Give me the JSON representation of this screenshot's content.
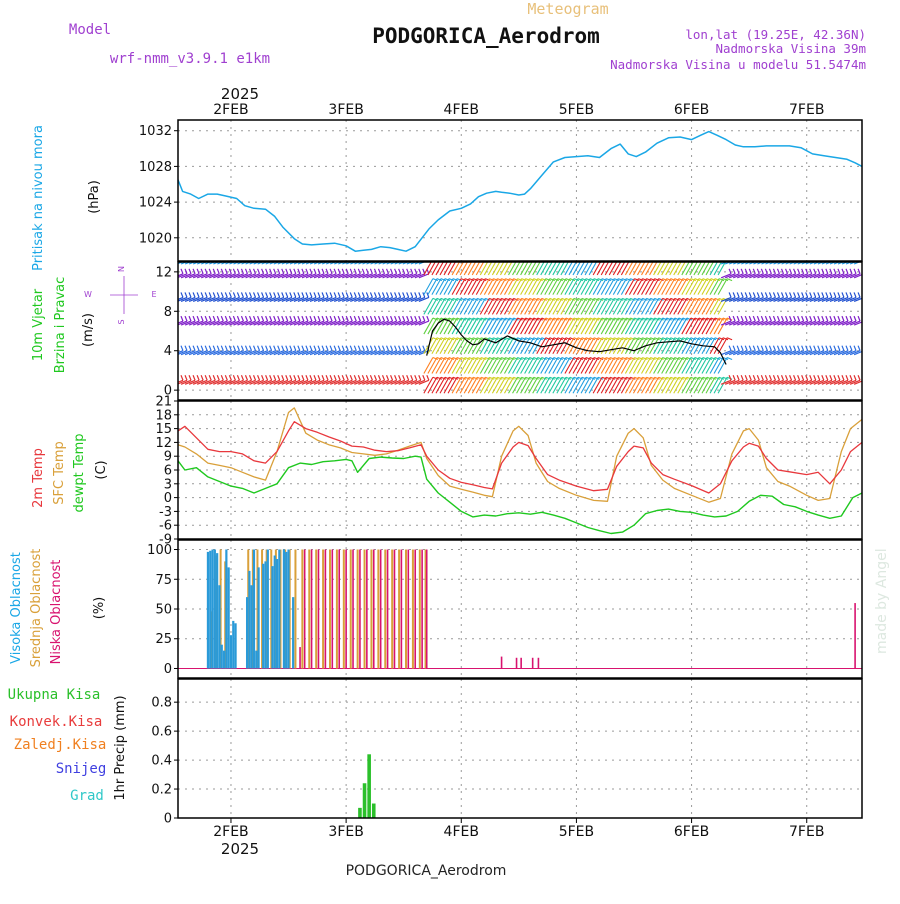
{
  "header": {
    "meteogram_label": "Meteogram",
    "station_title": "PODGORICA_Aerodrom",
    "model_label": "Model",
    "model_value": "wrf-nmm_v3.9.1 e1km",
    "lonlat": "lon,lat (19.25E, 42.36N)",
    "elevation": "Nadmorska Visina 39m",
    "model_elevation": "Nadmorska Visina u modelu 51.5474m",
    "watermark": "made by Angel",
    "footer_station": "PODGORICA_Aerodrom"
  },
  "colors": {
    "pressure": "#1aa7e6",
    "temp2m": "#e8383d",
    "sfc_temp": "#d9a03a",
    "dewpoint": "#1fc81f",
    "cloud_high": "#2a9ad8",
    "cloud_mid": "#d9a03a",
    "cloud_low": "#d8136f",
    "precip_total": "#2bc02b",
    "precip_conv": "#e83c3c",
    "precip_frozen": "#f08020",
    "precip_snow": "#4040e0",
    "precip_hail": "#30c8c8",
    "panel_label_purple": "#a040d0"
  },
  "chart_data": [
    {
      "type": "line",
      "panel": "pressure",
      "ylabel_left": "Pritisak na nivou mora",
      "ylabel_unit": "(hPa)",
      "time_axis": {
        "top_year": "2025",
        "bottom_year": "2025",
        "ticks": [
          "2FEB",
          "3FEB",
          "4FEB",
          "5FEB",
          "6FEB",
          "7FEB"
        ],
        "range_days": [
          1.54,
          7.48
        ]
      },
      "yticks": [
        "1020",
        "1024",
        "1028",
        "1032"
      ],
      "ylim": [
        1017.4,
        1033.2
      ],
      "series": [
        {
          "x": [
            1.54,
            1.58,
            1.65,
            1.72,
            1.8,
            1.88,
            1.95,
            2.05,
            2.12,
            2.2,
            2.3,
            2.38,
            2.45,
            2.55,
            2.62,
            2.7,
            2.8,
            2.9,
            3.0,
            3.08,
            3.15,
            3.22,
            3.3,
            3.38,
            3.45,
            3.52,
            3.6,
            3.66,
            3.72,
            3.8,
            3.9,
            4.0,
            4.08,
            4.15,
            4.22,
            4.3,
            4.35,
            4.42,
            4.5,
            4.55,
            4.6,
            4.7,
            4.8,
            4.9,
            5.0,
            5.1,
            5.2,
            5.3,
            5.38,
            5.45,
            5.52,
            5.6,
            5.7,
            5.8,
            5.9,
            6.0,
            6.08,
            6.15,
            6.22,
            6.3,
            6.38,
            6.45,
            6.55,
            6.65,
            6.75,
            6.85,
            6.95,
            7.05,
            7.15,
            7.25,
            7.35,
            7.42,
            7.48
          ],
          "values": [
            1026.5,
            1025.2,
            1024.9,
            1024.4,
            1024.9,
            1024.9,
            1024.7,
            1024.4,
            1023.6,
            1023.3,
            1023.2,
            1022.4,
            1021.2,
            1019.9,
            1019.3,
            1019.2,
            1019.3,
            1019.4,
            1019.1,
            1018.5,
            1018.6,
            1018.7,
            1019.0,
            1018.9,
            1018.7,
            1018.5,
            1019.0,
            1020.0,
            1021.0,
            1022.0,
            1023.0,
            1023.3,
            1023.8,
            1024.6,
            1025.0,
            1025.2,
            1025.1,
            1025.0,
            1024.8,
            1024.9,
            1025.5,
            1027.0,
            1028.5,
            1029.0,
            1029.1,
            1029.2,
            1029.0,
            1030.0,
            1030.5,
            1029.4,
            1029.1,
            1029.6,
            1030.6,
            1031.2,
            1031.3,
            1031.0,
            1031.5,
            1031.9,
            1031.5,
            1031.0,
            1030.4,
            1030.2,
            1030.2,
            1030.3,
            1030.3,
            1030.3,
            1030.1,
            1029.4,
            1029.2,
            1029.0,
            1028.8,
            1028.4,
            1028.0
          ]
        }
      ]
    },
    {
      "type": "line",
      "panel": "wind",
      "ylabel_left_1": "10m Vjetar",
      "ylabel_left_2": "Brzina i Pravac",
      "ylabel_unit": "(m/s)",
      "compass": {
        "north": "N",
        "south": "S",
        "east": "E",
        "west": "W"
      },
      "yticks": [
        "0",
        "4",
        "8",
        "12"
      ],
      "ylim": [
        -1,
        13
      ],
      "series": [
        {
          "name": "speed",
          "x": [
            3.7,
            3.75,
            3.8,
            3.85,
            3.9,
            3.95,
            4.0,
            4.05,
            4.1,
            4.15,
            4.2,
            4.3,
            4.4,
            4.5,
            4.6,
            4.7,
            4.8,
            4.9,
            5.0,
            5.1,
            5.2,
            5.3,
            5.4,
            5.5,
            5.6,
            5.7,
            5.8,
            5.9,
            6.0,
            6.1,
            6.2,
            6.25,
            6.3
          ],
          "values": [
            3.5,
            6.0,
            6.8,
            7.2,
            7.0,
            6.4,
            5.6,
            5.0,
            4.6,
            4.7,
            5.2,
            4.8,
            5.5,
            5.0,
            4.8,
            4.4,
            4.6,
            4.8,
            4.3,
            4.0,
            3.9,
            4.1,
            4.3,
            4.0,
            4.5,
            4.8,
            4.9,
            5.0,
            4.7,
            4.5,
            4.4,
            3.8,
            2.6
          ]
        }
      ]
    },
    {
      "type": "line",
      "panel": "temperature",
      "ylabel_left_1": "2m Temp",
      "ylabel_left_2": "SFC Temp",
      "ylabel_left_3": "dewpt Temp",
      "ylabel_unit": "(C)",
      "yticks": [
        "-9",
        "-6",
        "-3",
        "0",
        "3",
        "6",
        "9",
        "12",
        "15",
        "18",
        "21"
      ],
      "ylim": [
        -9,
        21
      ],
      "series": [
        {
          "name": "2m Temp",
          "x": [
            1.54,
            1.6,
            1.7,
            1.8,
            1.9,
            2.0,
            2.1,
            2.2,
            2.3,
            2.4,
            2.5,
            2.55,
            2.65,
            2.75,
            2.85,
            2.95,
            3.05,
            3.15,
            3.25,
            3.35,
            3.45,
            3.55,
            3.65,
            3.7,
            3.8,
            3.9,
            4.0,
            4.1,
            4.2,
            4.27,
            4.35,
            4.45,
            4.5,
            4.58,
            4.65,
            4.75,
            4.85,
            5.0,
            5.15,
            5.27,
            5.35,
            5.45,
            5.5,
            5.58,
            5.65,
            5.75,
            5.85,
            6.0,
            6.15,
            6.25,
            6.35,
            6.45,
            6.5,
            6.58,
            6.65,
            6.75,
            6.85,
            7.0,
            7.1,
            7.2,
            7.3,
            7.38,
            7.48
          ],
          "values": [
            14.5,
            15.5,
            13.0,
            10.5,
            10.0,
            10.0,
            9.5,
            8.0,
            7.5,
            10.0,
            14.5,
            16.5,
            15.0,
            14.2,
            13.2,
            12.3,
            11.2,
            11.0,
            10.3,
            10.0,
            10.2,
            10.8,
            11.5,
            9.0,
            6.0,
            4.2,
            3.3,
            2.8,
            2.2,
            1.9,
            7.5,
            11.0,
            12.0,
            11.3,
            8.5,
            5.0,
            3.8,
            2.5,
            1.5,
            1.8,
            6.8,
            10.0,
            11.2,
            10.8,
            7.5,
            5.0,
            4.0,
            2.6,
            1.0,
            3.0,
            8.0,
            11.0,
            11.8,
            11.2,
            8.5,
            6.0,
            5.6,
            5.0,
            5.5,
            3.0,
            6.0,
            10.0,
            12.0
          ]
        },
        {
          "name": "SFC Temp",
          "x": [
            1.54,
            1.6,
            1.7,
            1.8,
            1.9,
            2.0,
            2.1,
            2.2,
            2.3,
            2.4,
            2.5,
            2.55,
            2.65,
            2.75,
            2.85,
            2.95,
            3.05,
            3.15,
            3.25,
            3.35,
            3.45,
            3.55,
            3.65,
            3.7,
            3.8,
            3.9,
            4.0,
            4.1,
            4.2,
            4.27,
            4.35,
            4.45,
            4.5,
            4.58,
            4.65,
            4.75,
            4.85,
            5.0,
            5.15,
            5.27,
            5.35,
            5.45,
            5.5,
            5.58,
            5.65,
            5.75,
            5.85,
            6.0,
            6.15,
            6.25,
            6.35,
            6.45,
            6.5,
            6.58,
            6.65,
            6.75,
            6.85,
            7.0,
            7.1,
            7.2,
            7.3,
            7.38,
            7.48
          ],
          "values": [
            11.5,
            11.0,
            9.5,
            7.5,
            7.0,
            6.5,
            5.5,
            4.5,
            3.8,
            10.0,
            18.5,
            19.5,
            14.0,
            12.5,
            11.5,
            10.8,
            9.8,
            9.5,
            9.2,
            9.5,
            10.3,
            11.2,
            12.0,
            8.5,
            4.8,
            2.5,
            1.8,
            1.2,
            0.5,
            0.2,
            9.0,
            14.5,
            15.5,
            13.5,
            7.5,
            3.5,
            2.0,
            0.5,
            -0.6,
            -0.8,
            9.0,
            14.0,
            15.0,
            13.0,
            7.0,
            3.8,
            2.0,
            0.5,
            -1.0,
            -0.2,
            9.5,
            14.5,
            15.0,
            12.5,
            6.5,
            3.5,
            2.5,
            0.5,
            -0.6,
            -0.2,
            10.0,
            15.0,
            17.0
          ]
        },
        {
          "name": "dewpt Temp",
          "x": [
            1.54,
            1.6,
            1.7,
            1.8,
            1.9,
            2.0,
            2.1,
            2.2,
            2.3,
            2.4,
            2.5,
            2.6,
            2.7,
            2.8,
            2.9,
            3.0,
            3.05,
            3.1,
            3.2,
            3.3,
            3.4,
            3.5,
            3.6,
            3.65,
            3.7,
            3.8,
            3.9,
            4.0,
            4.1,
            4.2,
            4.3,
            4.4,
            4.5,
            4.6,
            4.7,
            4.8,
            4.9,
            5.0,
            5.1,
            5.2,
            5.3,
            5.4,
            5.5,
            5.6,
            5.7,
            5.8,
            5.9,
            6.0,
            6.1,
            6.2,
            6.3,
            6.4,
            6.5,
            6.6,
            6.7,
            6.8,
            6.9,
            7.0,
            7.1,
            7.2,
            7.3,
            7.4,
            7.48
          ],
          "values": [
            8.0,
            6.0,
            6.5,
            4.5,
            3.5,
            2.5,
            2.0,
            1.0,
            2.0,
            3.0,
            6.5,
            7.5,
            7.2,
            7.8,
            8.0,
            8.3,
            8.0,
            5.5,
            8.5,
            8.8,
            8.6,
            8.5,
            9.0,
            8.8,
            4.0,
            1.0,
            -1.0,
            -3.0,
            -4.2,
            -3.8,
            -4.0,
            -3.5,
            -3.3,
            -3.6,
            -3.2,
            -3.8,
            -4.5,
            -5.5,
            -6.5,
            -7.2,
            -7.8,
            -7.5,
            -6.0,
            -3.5,
            -2.8,
            -2.5,
            -3.0,
            -3.2,
            -3.8,
            -4.2,
            -4.0,
            -3.0,
            -0.8,
            0.5,
            0.3,
            -1.5,
            -2.0,
            -3.0,
            -3.8,
            -4.5,
            -4.0,
            0.0,
            1.0
          ]
        }
      ]
    },
    {
      "type": "bar",
      "panel": "clouds",
      "ylabel_left_1": "Visoka Oblacnost",
      "ylabel_left_2": "Srednja Oblacnost",
      "ylabel_left_3": "Niska Oblacnost",
      "ylabel_unit": "(%)",
      "yticks": [
        "0",
        "25",
        "50",
        "75",
        "100"
      ],
      "ylim": [
        -8,
        108
      ],
      "series": [
        {
          "name": "Visoka Oblacnost",
          "x": [
            1.8,
            1.82,
            1.84,
            1.86,
            1.88,
            1.9,
            1.92,
            1.94,
            1.96,
            1.98,
            2.0,
            2.02,
            2.04,
            2.06,
            2.08,
            2.1,
            2.12,
            2.14,
            2.16,
            2.18,
            2.2,
            2.22,
            2.24,
            2.26,
            2.28,
            2.3,
            2.32,
            2.34,
            2.36,
            2.38,
            2.4,
            2.42,
            2.44,
            2.46,
            2.48,
            2.5,
            2.52,
            2.54
          ],
          "values": [
            98,
            99,
            100,
            100,
            97,
            70,
            20,
            15,
            100,
            85,
            28,
            40,
            38,
            0,
            0,
            0,
            0,
            60,
            82,
            70,
            100,
            15,
            85,
            0,
            88,
            90,
            100,
            0,
            86,
            95,
            92,
            100,
            0,
            100,
            98,
            100,
            0,
            60
          ]
        },
        {
          "name": "Srednja Oblacnost",
          "x": [
            1.83,
            1.87,
            1.91,
            1.95,
            2.15,
            2.19,
            2.23,
            2.27,
            2.31,
            2.35,
            2.39,
            2.43,
            2.47,
            2.51,
            2.56,
            2.62,
            2.68,
            2.74,
            2.8,
            2.86,
            2.92,
            2.98,
            3.04,
            3.1,
            3.16,
            3.22,
            3.28,
            3.34,
            3.4,
            3.46,
            3.52,
            3.58,
            3.64,
            3.69
          ],
          "values": [
            48,
            95,
            100,
            90,
            100,
            100,
            100,
            100,
            100,
            100,
            100,
            100,
            100,
            100,
            100,
            100,
            100,
            100,
            100,
            100,
            100,
            100,
            100,
            100,
            100,
            100,
            100,
            100,
            100,
            100,
            100,
            100,
            100,
            100
          ]
        },
        {
          "name": "Niska Oblacnost",
          "x": [
            2.6,
            2.64,
            2.7,
            2.76,
            2.82,
            2.88,
            2.94,
            3.0,
            3.06,
            3.12,
            3.18,
            3.24,
            3.3,
            3.36,
            3.42,
            3.48,
            3.54,
            3.6,
            3.66,
            3.7,
            4.35,
            4.48,
            4.52,
            4.62,
            4.67,
            7.42
          ],
          "values": [
            18,
            100,
            100,
            100,
            100,
            100,
            100,
            100,
            100,
            100,
            100,
            100,
            100,
            100,
            100,
            100,
            100,
            100,
            100,
            100,
            10,
            9,
            9,
            9,
            9,
            55
          ]
        }
      ]
    },
    {
      "type": "bar",
      "panel": "precipitation",
      "legend": [
        "Ukupna Kisa",
        "Konvek.Kisa",
        "Zaledj.Kisa",
        "Snijeg",
        "Grad"
      ],
      "ylabel_unit": "1hr Precip (mm)",
      "yticks": [
        "0",
        "0.2",
        "0.4",
        "0.6",
        "0.8"
      ],
      "ylim": [
        0,
        0.96
      ],
      "series": [
        {
          "name": "Ukupna Kisa",
          "x": [
            3.12,
            3.16,
            3.2,
            3.24
          ],
          "values": [
            0.07,
            0.24,
            0.44,
            0.1
          ]
        }
      ]
    }
  ]
}
